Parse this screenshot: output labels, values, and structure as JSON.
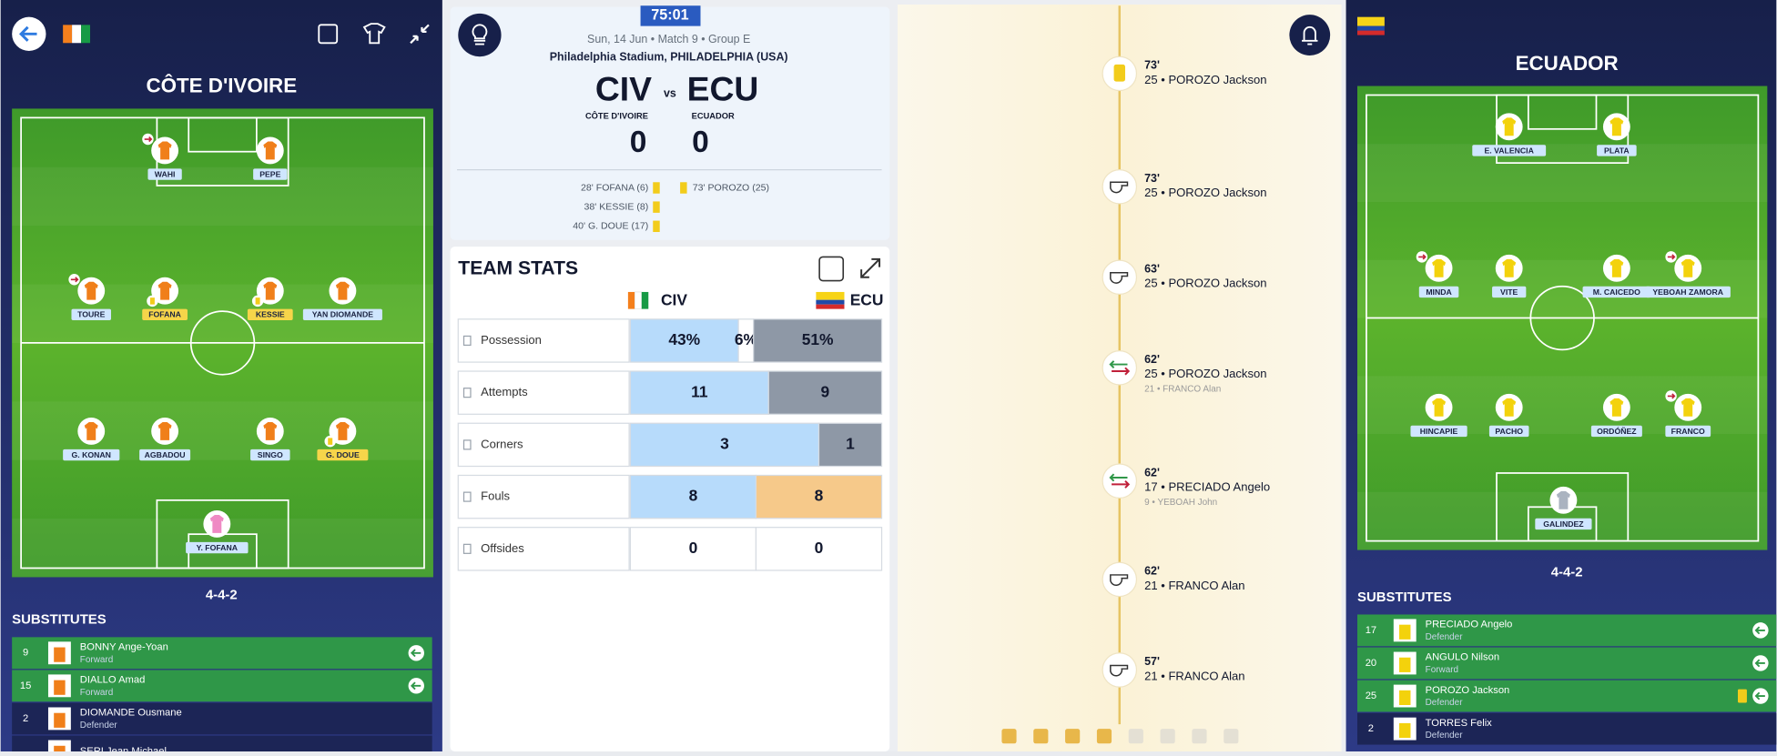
{
  "left_team": {
    "name": "CÔTE D'IVOIRE",
    "formation": "4-4-2",
    "players": [
      "WAHI",
      "PEPE",
      "TOURE",
      "FOFANA",
      "KESSIE",
      "YAN DIOMANDE",
      "G. KONAN",
      "AGBADOU",
      "SINGO",
      "G. DOUE",
      "Y. FOFANA"
    ],
    "substitutes_title": "SUBSTITUTES",
    "substitutes": [
      {
        "number": "9",
        "name": "BONNY Ange-Yoan",
        "position": "Forward"
      },
      {
        "number": "15",
        "name": "DIALLO Amad",
        "position": "Forward"
      },
      {
        "number": "2",
        "name": "DIOMANDE Ousmane",
        "position": "Defender"
      },
      {
        "name": "SERI Jean Michael"
      }
    ]
  },
  "match": {
    "clock": "75:01",
    "info": "Sun, 14 Jun • Match 9 • Group E",
    "venue": "Philadelphia Stadium, PHILADELPHIA (USA)",
    "home_code": "CIV",
    "vs": "vs",
    "away_code": "ECU",
    "home_name": "CÔTE D'IVOIRE",
    "away_name": "ECUADOR",
    "home_score": "0",
    "away_score": "0",
    "home_events": [
      "28' FOFANA (6)",
      "38' KESSIE (8)",
      "40' G. DOUE (17)"
    ],
    "away_events": [
      "73' POROZO (25)"
    ]
  },
  "team_stats": {
    "title": "TEAM STATS",
    "home": "CIV",
    "away": "ECU",
    "rows": [
      {
        "label": "Possession",
        "home": "43%",
        "middle": "6%",
        "away": "51%"
      },
      {
        "label": "Attempts",
        "home": "11",
        "away": "9"
      },
      {
        "label": "Corners",
        "home": "3",
        "away": "1"
      },
      {
        "label": "Fouls",
        "home": "8",
        "away": "8"
      },
      {
        "label": "Offsides",
        "home": "0",
        "away": "0"
      }
    ]
  },
  "timeline": [
    {
      "minute": "73'",
      "text": "25 • POROZO Jackson"
    },
    {
      "minute": "73'",
      "text": "25 • POROZO Jackson"
    },
    {
      "minute": "63'",
      "text": "25 • POROZO Jackson"
    },
    {
      "minute": "62'",
      "text": "25 • POROZO Jackson",
      "detail": "21 • FRANCO Alan"
    },
    {
      "minute": "62'",
      "text": "17 • PRECIADO Angelo",
      "detail": "9 • YEBOAH John"
    },
    {
      "minute": "62'",
      "text": "21 • FRANCO Alan"
    },
    {
      "minute": "57'",
      "text": "21 • FRANCO Alan"
    }
  ],
  "right_team": {
    "name": "ECUADOR",
    "formation": "4-4-2",
    "players": [
      "E. VALENCIA",
      "PLATA",
      "MINDA",
      "VITE",
      "M. CAICEDO",
      "YEBOAH ZAMORA",
      "HINCAPIE",
      "PACHO",
      "ORDÓÑEZ",
      "FRANCO",
      "GALINDEZ"
    ],
    "substitutes_title": "SUBSTITUTES",
    "substitutes": [
      {
        "number": "17",
        "name": "PRECIADO Angelo",
        "position": "Defender"
      },
      {
        "number": "20",
        "name": "ANGULO Nilson",
        "position": "Forward"
      },
      {
        "number": "25",
        "name": "POROZO Jackson",
        "position": "Defender"
      },
      {
        "number": "2",
        "name": "TORRES Felix",
        "position": "Defender"
      }
    ]
  }
}
